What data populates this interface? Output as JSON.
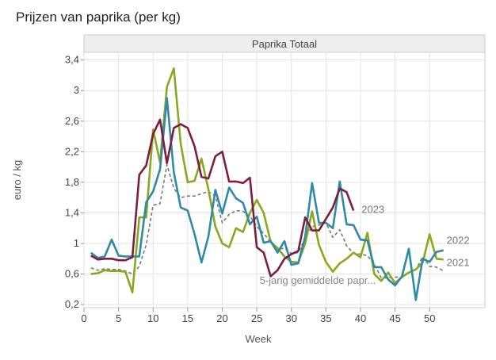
{
  "chart_data": {
    "type": "line",
    "title": "Prijzen van paprika (per kg)",
    "panel_title": "Paprika Totaal",
    "xlabel": "Week",
    "ylabel": "euro / kg",
    "xlim": [
      0,
      58
    ],
    "ylim": [
      0.16,
      3.5
    ],
    "x_ticks": [
      0,
      5,
      10,
      15,
      20,
      25,
      30,
      35,
      40,
      45,
      50
    ],
    "y_ticks": [
      0.2,
      0.6,
      1,
      1.4,
      1.8,
      2.2,
      2.6,
      3,
      3.4
    ],
    "y_tick_labels": [
      "0,2",
      "0,6",
      "1",
      "1,4",
      "1,8",
      "2,2",
      "2,6",
      "3",
      "3,4"
    ],
    "grid": true,
    "legend": "labels at line ends",
    "series": [
      {
        "name": "2021",
        "color": "#8aa81e",
        "dashed": false,
        "x": [
          1,
          2,
          3,
          4,
          5,
          6,
          7,
          8,
          9,
          10,
          11,
          12,
          13,
          14,
          15,
          16,
          17,
          18,
          19,
          20,
          21,
          22,
          23,
          24,
          25,
          26,
          27,
          28,
          29,
          30,
          31,
          32,
          33,
          34,
          35,
          36,
          37,
          38,
          39,
          40,
          41,
          42,
          43,
          44,
          45,
          46,
          47,
          48,
          49,
          50,
          51,
          52
        ],
        "values": [
          0.6,
          0.61,
          0.65,
          0.64,
          0.64,
          0.63,
          0.36,
          1.34,
          1.34,
          2.49,
          2.06,
          3.05,
          3.29,
          2.3,
          1.8,
          1.82,
          2.11,
          1.71,
          1.22,
          1.0,
          0.95,
          1.2,
          1.15,
          1.4,
          1.57,
          1.4,
          1.02,
          0.94,
          0.83,
          0.76,
          0.75,
          1.0,
          1.42,
          0.98,
          0.76,
          0.63,
          0.74,
          0.8,
          0.88,
          0.82,
          1.14,
          0.6,
          0.51,
          0.62,
          0.48,
          0.56,
          0.62,
          0.66,
          0.75,
          1.12,
          0.8,
          0.79
        ]
      },
      {
        "name": "2022",
        "color": "#2e8aa8",
        "dashed": false,
        "x": [
          1,
          2,
          3,
          4,
          5,
          6,
          7,
          8,
          9,
          10,
          11,
          12,
          13,
          14,
          15,
          16,
          17,
          18,
          19,
          20,
          21,
          22,
          23,
          24,
          25,
          26,
          27,
          28,
          29,
          30,
          31,
          32,
          33,
          34,
          35,
          36,
          37,
          38,
          39,
          40,
          41,
          42,
          43,
          44,
          45,
          46,
          47,
          48,
          49,
          50,
          51,
          52
        ],
        "values": [
          0.88,
          0.81,
          0.83,
          1.05,
          0.84,
          0.83,
          0.83,
          0.83,
          1.54,
          1.68,
          1.97,
          2.9,
          1.93,
          1.47,
          1.43,
          1.12,
          0.75,
          1.09,
          1.7,
          1.39,
          1.73,
          1.59,
          1.53,
          1.25,
          1.35,
          1.01,
          1.03,
          0.88,
          1.03,
          0.72,
          0.74,
          1.09,
          1.79,
          1.27,
          1.27,
          1.2,
          1.81,
          1.25,
          1.24,
          1.05,
          1.04,
          0.69,
          0.69,
          0.53,
          0.45,
          0.57,
          0.93,
          0.26,
          0.8,
          0.76,
          0.89,
          0.91
        ]
      },
      {
        "name": "2023",
        "color": "#7e1e3e",
        "dashed": false,
        "x": [
          1,
          2,
          3,
          4,
          5,
          6,
          7,
          8,
          9,
          10,
          11,
          12,
          13,
          14,
          15,
          16,
          17,
          18,
          19,
          20,
          21,
          22,
          23,
          24,
          25,
          26,
          27,
          28,
          29,
          30,
          31,
          32,
          33,
          34,
          35,
          36,
          37,
          38,
          39
        ],
        "values": [
          0.84,
          0.79,
          0.8,
          0.8,
          0.78,
          0.78,
          0.82,
          1.9,
          2.02,
          2.43,
          2.62,
          2.05,
          2.51,
          2.56,
          2.51,
          2.27,
          1.87,
          1.85,
          2.14,
          2.2,
          1.81,
          1.81,
          1.79,
          1.86,
          0.95,
          0.88,
          0.57,
          0.65,
          0.8,
          0.86,
          0.9,
          1.34,
          1.17,
          1.17,
          1.32,
          1.47,
          1.72,
          1.67,
          1.43
        ]
      },
      {
        "name": "5-jarig gemiddelde papr...",
        "color": "#777777",
        "dashed": true,
        "x": [
          1,
          2,
          3,
          4,
          5,
          6,
          7,
          8,
          9,
          10,
          11,
          12,
          13,
          14,
          15,
          16,
          17,
          18,
          19,
          20,
          21,
          22,
          23,
          24,
          25,
          26,
          27,
          28,
          29,
          30,
          31,
          32,
          33,
          34,
          35,
          36,
          37,
          38,
          39,
          40,
          41,
          42,
          43,
          44,
          45,
          46,
          47,
          48,
          49,
          50,
          51,
          52
        ],
        "values": [
          0.68,
          0.65,
          0.67,
          0.66,
          0.66,
          0.64,
          0.6,
          0.7,
          0.98,
          1.5,
          1.52,
          2.03,
          1.72,
          1.6,
          1.62,
          1.62,
          1.65,
          1.68,
          1.62,
          1.27,
          1.38,
          1.43,
          1.42,
          1.36,
          1.22,
          1.13,
          1.02,
          0.92,
          0.94,
          0.87,
          0.88,
          1.07,
          1.22,
          1.24,
          1.27,
          1.08,
          1.18,
          0.97,
          0.87,
          0.86,
          0.84,
          0.73,
          0.55,
          0.55,
          0.56,
          0.56,
          0.63,
          0.65,
          0.83,
          0.7,
          0.69,
          0.64
        ]
      }
    ]
  }
}
